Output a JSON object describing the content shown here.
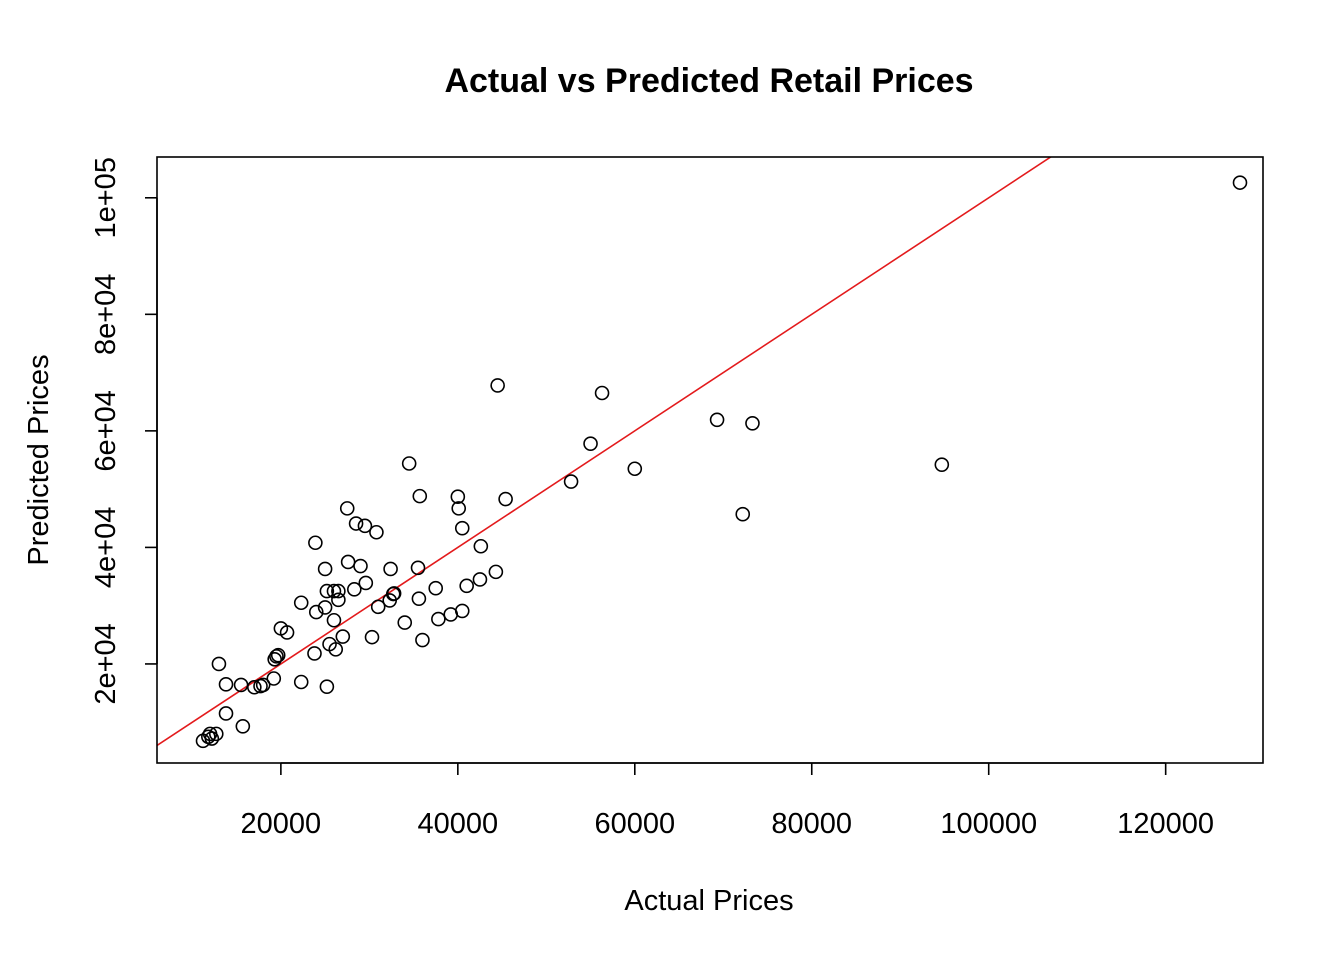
{
  "chart_data": {
    "type": "scatter",
    "title": "Actual vs Predicted Retail Prices",
    "xlabel": "Actual Prices",
    "ylabel": "Predicted Prices",
    "xlim": [
      6000,
      131000
    ],
    "ylim": [
      3000,
      107000
    ],
    "x_ticks": [
      20000,
      40000,
      60000,
      80000,
      100000,
      120000
    ],
    "x_tick_labels": [
      "20000",
      "40000",
      "60000",
      "80000",
      "100000",
      "120000"
    ],
    "y_ticks": [
      20000,
      40000,
      60000,
      80000,
      100000
    ],
    "y_tick_labels": [
      "2e+04",
      "4e+04",
      "6e+04",
      "8e+04",
      "1e+05"
    ],
    "grid": false,
    "reference_line": {
      "intercept": 0,
      "slope": 1,
      "color": "#e31a1c"
    },
    "points": [
      [
        11200,
        6800
      ],
      [
        11800,
        7500
      ],
      [
        12000,
        8000
      ],
      [
        12200,
        7200
      ],
      [
        12700,
        8000
      ],
      [
        13000,
        20000
      ],
      [
        13800,
        16500
      ],
      [
        13800,
        11500
      ],
      [
        15500,
        16400
      ],
      [
        15700,
        9300
      ],
      [
        17000,
        16000
      ],
      [
        17700,
        16200
      ],
      [
        18000,
        16400
      ],
      [
        19200,
        17500
      ],
      [
        19300,
        20800
      ],
      [
        19500,
        21300
      ],
      [
        19700,
        21500
      ],
      [
        20000,
        26100
      ],
      [
        20700,
        25400
      ],
      [
        22300,
        16900
      ],
      [
        22300,
        30500
      ],
      [
        23800,
        21800
      ],
      [
        23900,
        40800
      ],
      [
        24000,
        28900
      ],
      [
        25000,
        36300
      ],
      [
        25000,
        29700
      ],
      [
        25200,
        16100
      ],
      [
        25200,
        32500
      ],
      [
        25500,
        23400
      ],
      [
        26000,
        32500
      ],
      [
        26000,
        27500
      ],
      [
        26200,
        22500
      ],
      [
        26500,
        32500
      ],
      [
        26500,
        31000
      ],
      [
        27000,
        24700
      ],
      [
        27500,
        46700
      ],
      [
        27600,
        37500
      ],
      [
        28300,
        32800
      ],
      [
        28500,
        44100
      ],
      [
        29000,
        36800
      ],
      [
        29500,
        43700
      ],
      [
        29600,
        33900
      ],
      [
        30300,
        24600
      ],
      [
        30800,
        42600
      ],
      [
        31000,
        29800
      ],
      [
        32300,
        30900
      ],
      [
        32400,
        36300
      ],
      [
        32700,
        32000
      ],
      [
        32800,
        32100
      ],
      [
        34000,
        27100
      ],
      [
        34500,
        54400
      ],
      [
        35500,
        36500
      ],
      [
        35600,
        31200
      ],
      [
        35700,
        48800
      ],
      [
        36000,
        24100
      ],
      [
        37500,
        33000
      ],
      [
        37800,
        27700
      ],
      [
        39200,
        28500
      ],
      [
        40000,
        48700
      ],
      [
        40100,
        46700
      ],
      [
        40500,
        43300
      ],
      [
        40500,
        29100
      ],
      [
        41000,
        33400
      ],
      [
        42500,
        34500
      ],
      [
        42600,
        40200
      ],
      [
        44300,
        35800
      ],
      [
        44500,
        67800
      ],
      [
        45400,
        48300
      ],
      [
        52800,
        51300
      ],
      [
        55000,
        57800
      ],
      [
        56300,
        66500
      ],
      [
        60000,
        53500
      ],
      [
        69300,
        61900
      ],
      [
        72200,
        45700
      ],
      [
        73300,
        61300
      ],
      [
        94700,
        54200
      ],
      [
        128400,
        102600
      ]
    ]
  }
}
